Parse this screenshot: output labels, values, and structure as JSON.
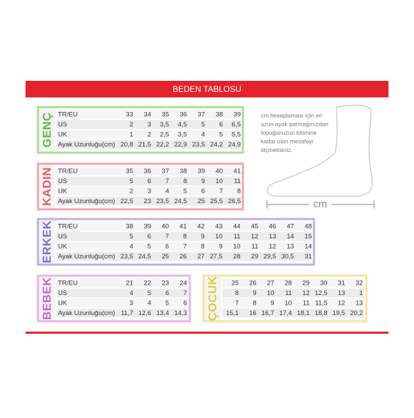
{
  "header": {
    "title": "BEDEN TABLOSU"
  },
  "tables": [
    {
      "name": "GENÇ",
      "rows": [
        {
          "label": "TR/EU",
          "values": [
            "33",
            "34",
            "35",
            "36",
            "37",
            "38",
            "39"
          ]
        },
        {
          "label": "US",
          "values": [
            "2",
            "3",
            "3,5",
            "4,5",
            "5",
            "6",
            "6,5"
          ]
        },
        {
          "label": "UK",
          "values": [
            "1",
            "2",
            "2,5",
            "3,5",
            "4",
            "5",
            "5,5"
          ]
        },
        {
          "label": "Ayak Uzunluğu(cm)",
          "values": [
            "20,8",
            "21,5",
            "22,2",
            "22,9",
            "23,5",
            "24,2",
            "24,9"
          ]
        }
      ]
    },
    {
      "name": "KADIN",
      "rows": [
        {
          "label": "TR/EU",
          "values": [
            "35",
            "36",
            "37",
            "38",
            "39",
            "40",
            "41"
          ]
        },
        {
          "label": "US",
          "values": [
            "5",
            "6",
            "7",
            "8",
            "9",
            "10",
            "11"
          ]
        },
        {
          "label": "UK",
          "values": [
            "2",
            "3",
            "4",
            "5",
            "6",
            "7",
            "8"
          ]
        },
        {
          "label": "Ayak Uzunluğu(cm)",
          "values": [
            "22,5",
            "23",
            "23,5",
            "24,5",
            "25",
            "25,5",
            "26,5"
          ]
        }
      ]
    },
    {
      "name": "ERKEK",
      "rows": [
        {
          "label": "TR/EU",
          "values": [
            "38",
            "39",
            "40",
            "41",
            "42",
            "43",
            "44",
            "45",
            "46",
            "47",
            "48"
          ]
        },
        {
          "label": "US",
          "values": [
            "5",
            "6",
            "7",
            "8",
            "9",
            "10",
            "11",
            "12",
            "13",
            "14",
            "15"
          ]
        },
        {
          "label": "UK",
          "values": [
            "4",
            "5",
            "6",
            "7",
            "8",
            "9",
            "10",
            "11",
            "12",
            "13",
            "14"
          ]
        },
        {
          "label": "Ayak Uzunluğu(cm)",
          "values": [
            "23,5",
            "24,5",
            "25",
            "26",
            "27",
            "27,5",
            "28",
            "29",
            "29,5",
            "30,5",
            "31"
          ]
        }
      ]
    },
    {
      "name": "BEBEK",
      "rows": [
        {
          "label": "TR/EU",
          "values": [
            "21",
            "22",
            "23",
            "24"
          ]
        },
        {
          "label": "US",
          "values": [
            "4",
            "5",
            "6",
            "7"
          ]
        },
        {
          "label": "UK",
          "values": [
            "3",
            "4",
            "5",
            "6"
          ]
        },
        {
          "label": "Ayak Uzunluğu(cm)",
          "values": [
            "11,7",
            "12,6",
            "13,4",
            "14,3"
          ]
        }
      ]
    },
    {
      "name": "ÇOCUK",
      "rows": [
        {
          "values": [
            "25",
            "26",
            "27",
            "28",
            "29",
            "30",
            "31",
            "32"
          ]
        },
        {
          "values": [
            "8",
            "9",
            "10",
            "11",
            "12",
            "12,5",
            "13",
            "1"
          ]
        },
        {
          "values": [
            "7",
            "8",
            "9",
            "10",
            "11",
            "11,5",
            "12",
            "13"
          ]
        },
        {
          "values": [
            "15,1",
            "16",
            "16,7",
            "17,4",
            "18,1",
            "18,8",
            "19,5",
            "20,2"
          ]
        }
      ]
    }
  ],
  "note": {
    "lines": [
      "cm hesaplaması için en",
      "uzun ayak parmağınızdan",
      "topuğunuzun bitimine",
      "kadar olan mesafeyi",
      "ölçmelisiniz."
    ]
  },
  "measure_label": "cm"
}
